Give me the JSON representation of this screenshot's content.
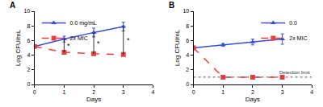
{
  "chart_data": [
    {
      "type": "line",
      "title": "A",
      "x_label": "Days",
      "y_label": "Log CFU/mL",
      "x": [
        0,
        1,
        2,
        3
      ],
      "xlim": [
        0,
        4
      ],
      "xticks": [
        0,
        1,
        2,
        3,
        4
      ],
      "ylim": [
        0,
        10
      ],
      "yticks": [
        0,
        2,
        4,
        6,
        8,
        10
      ],
      "grid": false,
      "legend": "upper left",
      "series": [
        {
          "name": "0.0 mg/mL",
          "color": "#3b4cdb",
          "marker": "triangle-up",
          "line_style": "solid",
          "values": [
            5.2,
            6.2,
            7.1,
            7.9
          ],
          "errors": [
            0.1,
            0.4,
            0.6,
            0.6
          ]
        },
        {
          "name": "2x MIC",
          "color": "#e8403c",
          "marker": "square",
          "line_style": "dash",
          "values": [
            5.2,
            4.4,
            4.2,
            4.1
          ],
          "errors": [
            0.1,
            0.1,
            0.1,
            0.1
          ]
        }
      ],
      "annotations": [
        {
          "text": "*",
          "x": 1,
          "y": 5.3
        },
        {
          "text": "*",
          "x": 2,
          "y": 5.65
        },
        {
          "text": "*",
          "x": 3,
          "y": 6.0
        }
      ]
    },
    {
      "type": "line",
      "title": "B",
      "x_label": "Days",
      "y_label": "Log CFU/mL",
      "x": [
        0,
        1,
        2,
        3
      ],
      "xlim": [
        0,
        4
      ],
      "xticks": [
        0,
        1,
        2,
        3,
        4
      ],
      "ylim": [
        0,
        10
      ],
      "yticks": [
        0,
        2,
        4,
        6,
        8,
        10
      ],
      "grid": false,
      "legend": "upper right",
      "series": [
        {
          "name": "0.0",
          "color": "#3b4cdb",
          "marker": "triangle-up",
          "line_style": "solid",
          "values": [
            5.0,
            5.4,
            5.8,
            6.2
          ],
          "errors": [
            0.1,
            0.2,
            0.4,
            0.7
          ]
        },
        {
          "name": "2x MIC",
          "color": "#e8403c",
          "marker": "square",
          "line_style": "dash",
          "values": [
            5.0,
            1,
            1,
            1
          ],
          "errors": [
            0.1,
            0,
            0,
            0
          ]
        }
      ],
      "hlines": [
        {
          "y": 1,
          "label": "Detection limit",
          "line_style": "dot"
        }
      ]
    }
  ]
}
